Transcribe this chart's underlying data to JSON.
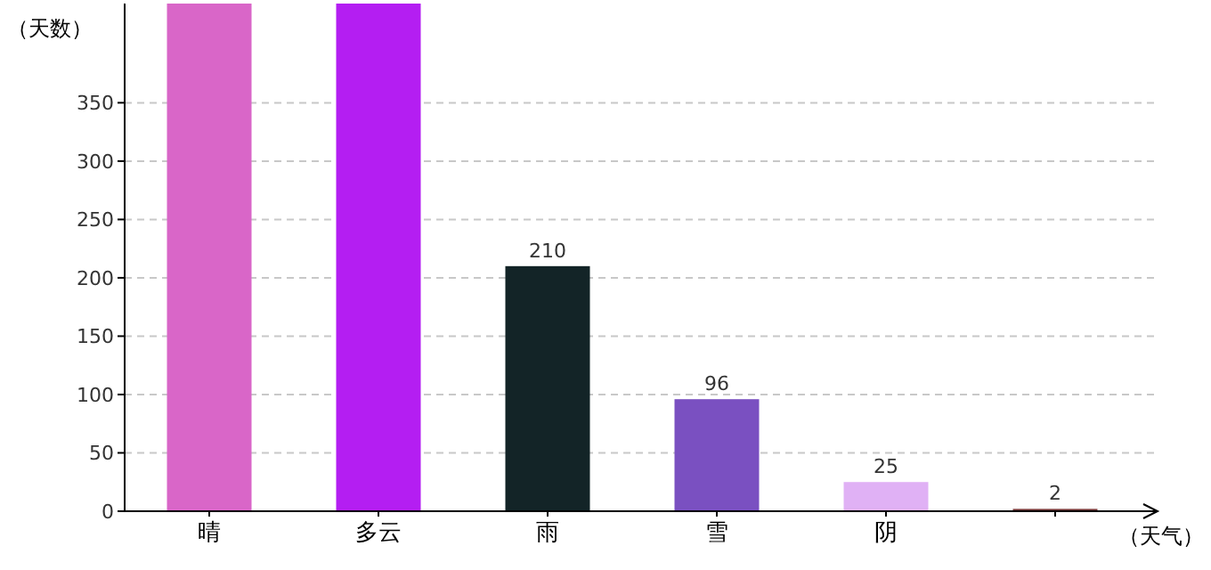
{
  "chart_data": {
    "type": "bar",
    "ylabel": "（天数）",
    "xlabel": "（天气）",
    "categories": [
      "晴",
      "多云",
      "雨",
      "雪",
      "阴",
      null
    ],
    "values": [
      435,
      435,
      210,
      96,
      25,
      2
    ],
    "colors": [
      "#d966c8",
      "#b41ef2",
      "#132427",
      "#7a50c1",
      "#e0b1f5",
      "#7a3a3a"
    ],
    "value_labels": [
      null,
      null,
      "210",
      "96",
      "25",
      "2"
    ],
    "ylim": [
      0,
      435
    ],
    "yticks": [
      0,
      50,
      100,
      150,
      200,
      250,
      300,
      350
    ],
    "grid": "y"
  }
}
